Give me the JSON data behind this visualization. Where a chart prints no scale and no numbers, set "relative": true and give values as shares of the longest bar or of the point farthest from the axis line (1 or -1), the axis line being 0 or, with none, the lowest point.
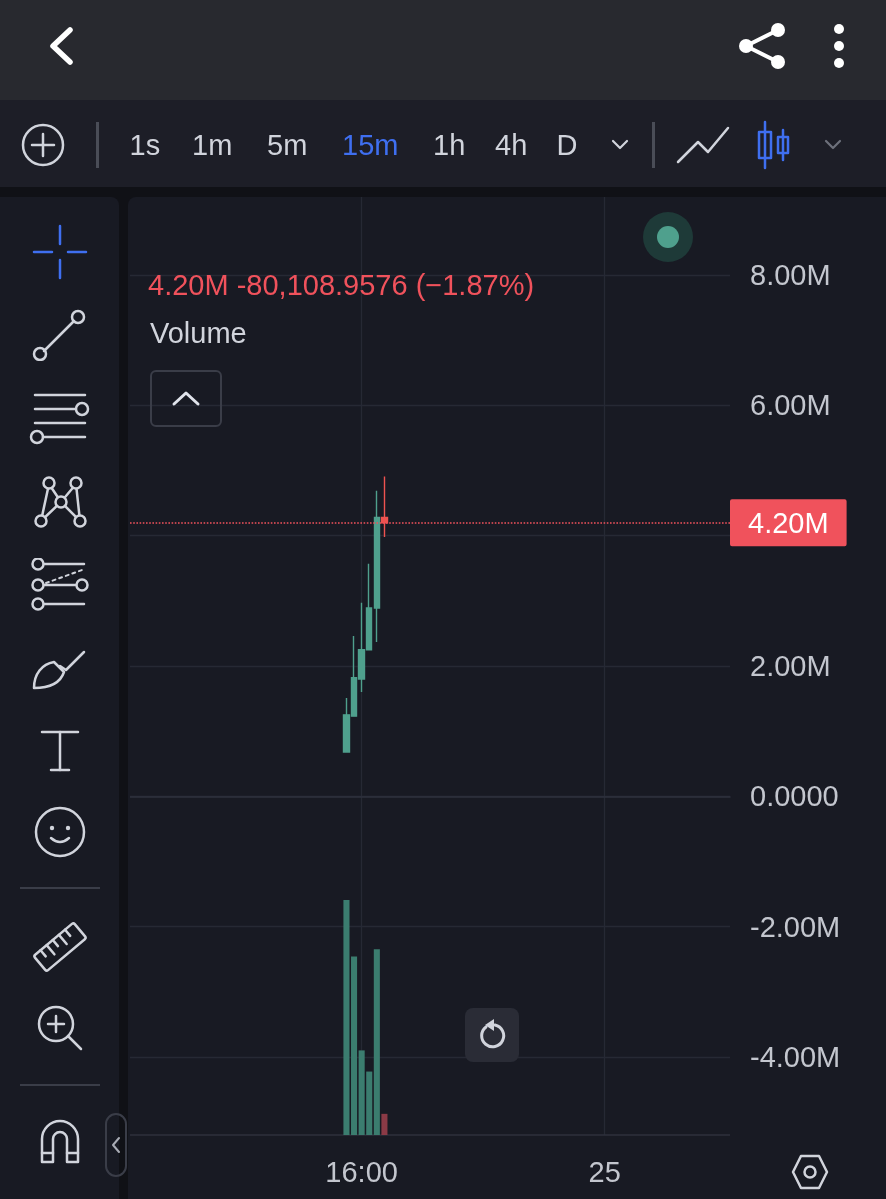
{
  "chart_data": [
    {
      "type": "candlestick",
      "subtitle": "4.20M -80,108.9576 (−1.87%)",
      "annotations": [
        "1s",
        "1m",
        "5m",
        "15m",
        "1h",
        "4h",
        "D"
      ],
      "categories": [
        null,
        null,
        null,
        null,
        null,
        null,
        null,
        null,
        null,
        null,
        null,
        null,
        null,
        null,
        null,
        null,
        null,
        null,
        null,
        null,
        null,
        null,
        null,
        null,
        null,
        null,
        null,
        null,
        null,
        null,
        "16:00",
        null,
        null,
        null,
        null,
        null,
        null,
        null,
        null,
        null,
        null,
        null,
        null,
        null,
        null,
        null,
        null,
        null,
        null,
        null,
        null,
        null,
        null,
        null,
        null,
        null,
        null,
        null,
        null,
        null,
        null,
        null,
        "25",
        null,
        null,
        null,
        null,
        null,
        null,
        null,
        null,
        null,
        null,
        null,
        null,
        null,
        null,
        null,
        null
      ],
      "ohlc": [
        null,
        null,
        null,
        null,
        null,
        null,
        null,
        null,
        null,
        null,
        null,
        null,
        null,
        null,
        null,
        null,
        null,
        null,
        null,
        null,
        null,
        null,
        null,
        null,
        null,
        null,
        null,
        null,
        [
          680000,
          1510000,
          680000,
          1250000
        ],
        [
          1230000,
          2460000,
          1230000,
          1820000
        ],
        [
          1800000,
          2970000,
          1600000,
          2250000
        ],
        [
          2250000,
          3570000,
          2250000,
          2890000
        ],
        [
          2890000,
          4690000,
          2370000,
          4280000
        ],
        [
          4280000,
          4910000,
          3980000,
          4200000
        ],
        null,
        null,
        null,
        null,
        null,
        null,
        null,
        null,
        null,
        null,
        null,
        null,
        null,
        null,
        null,
        null,
        null,
        null,
        null,
        null,
        null,
        null,
        null,
        null,
        null,
        null,
        null,
        null,
        null,
        null,
        null,
        null,
        null,
        null,
        null,
        null,
        null,
        null,
        null,
        null,
        null,
        null,
        null,
        null,
        null
      ],
      "colors": [
        null,
        null,
        null,
        null,
        null,
        null,
        null,
        null,
        null,
        null,
        null,
        null,
        null,
        null,
        null,
        null,
        null,
        null,
        null,
        null,
        null,
        null,
        null,
        null,
        null,
        null,
        null,
        null,
        "#4fa08d",
        "#4fa08d",
        "#4fa08d",
        "#4fa08d",
        "#4fa08d",
        "#ef5350",
        null,
        null,
        null,
        null,
        null,
        null,
        null,
        null,
        null,
        null,
        null,
        null,
        null,
        null,
        null,
        null,
        null,
        null,
        null,
        null,
        null,
        null,
        null,
        null,
        null,
        null,
        null,
        null,
        null,
        null,
        null,
        null,
        null,
        null,
        null,
        null,
        null,
        null,
        null,
        null,
        null,
        null,
        null,
        null,
        null
      ],
      "ylim": [
        -5200000,
        9200000
      ],
      "yticks": [
        {
          "value": 8000000,
          "label": "8.00M"
        },
        {
          "value": 6000000,
          "label": "6.00M"
        },
        {
          "value": 4000000,
          "label": null
        },
        {
          "value": 2000000,
          "label": "2.00M"
        },
        {
          "value": 0,
          "label": "0.0000"
        },
        {
          "value": -2000000,
          "label": "-2.00M"
        },
        {
          "value": -4000000,
          "label": "-4.00M"
        }
      ],
      "ref_lines": [
        {
          "axis": "y",
          "value": 4200000,
          "label": "4.20M",
          "color": "#f0525c",
          "line_style": "dotted"
        }
      ],
      "grid": true
    },
    {
      "type": "bar",
      "title": "Volume",
      "relative": true,
      "categories": [
        null,
        null,
        null,
        null,
        null,
        null,
        null,
        null,
        null,
        null,
        null,
        null,
        null,
        null,
        null,
        null,
        null,
        null,
        null,
        null,
        null,
        null,
        null,
        null,
        null,
        null,
        null,
        null,
        null,
        null,
        null,
        null,
        null,
        null,
        null,
        null,
        null,
        null,
        null,
        null,
        null,
        null,
        null,
        null,
        null,
        null,
        null,
        null,
        null,
        null,
        null,
        null,
        null,
        null,
        null,
        null,
        null,
        null,
        null,
        null,
        null,
        null,
        null,
        null,
        null,
        null,
        null,
        null,
        null,
        null,
        null,
        null,
        null,
        null,
        null,
        null,
        null,
        null,
        null
      ],
      "values": [
        null,
        null,
        null,
        null,
        null,
        null,
        null,
        null,
        null,
        null,
        null,
        null,
        null,
        null,
        null,
        null,
        null,
        null,
        null,
        null,
        null,
        null,
        null,
        null,
        null,
        null,
        null,
        null,
        1,
        0.76,
        0.36,
        0.27,
        0.79,
        0.09,
        null,
        null,
        null,
        null,
        null,
        null,
        null,
        null,
        null,
        null,
        null,
        null,
        null,
        null,
        null,
        null,
        null,
        null,
        null,
        null,
        null,
        null,
        null,
        null,
        null,
        null,
        null,
        null,
        null,
        null,
        null,
        null,
        null,
        null,
        null,
        null,
        null,
        null,
        null,
        null,
        null,
        null,
        null,
        null,
        null
      ],
      "colors": [
        null,
        null,
        null,
        null,
        null,
        null,
        null,
        null,
        null,
        null,
        null,
        null,
        null,
        null,
        null,
        null,
        null,
        null,
        null,
        null,
        null,
        null,
        null,
        null,
        null,
        null,
        null,
        null,
        "#3b7d6f",
        "#3b7d6f",
        "#3b7d6f",
        "#3b7d6f",
        "#3b7d6f",
        "#8b3a46",
        null,
        null,
        null,
        null,
        null,
        null,
        null,
        null,
        null,
        null,
        null,
        null,
        null,
        null,
        null,
        null,
        null,
        null,
        null,
        null,
        null,
        null,
        null,
        null,
        null,
        null,
        null,
        null,
        null,
        null,
        null,
        null,
        null,
        null,
        null,
        null,
        null,
        null,
        null,
        null,
        null,
        null,
        null,
        null,
        null
      ]
    }
  ]
}
